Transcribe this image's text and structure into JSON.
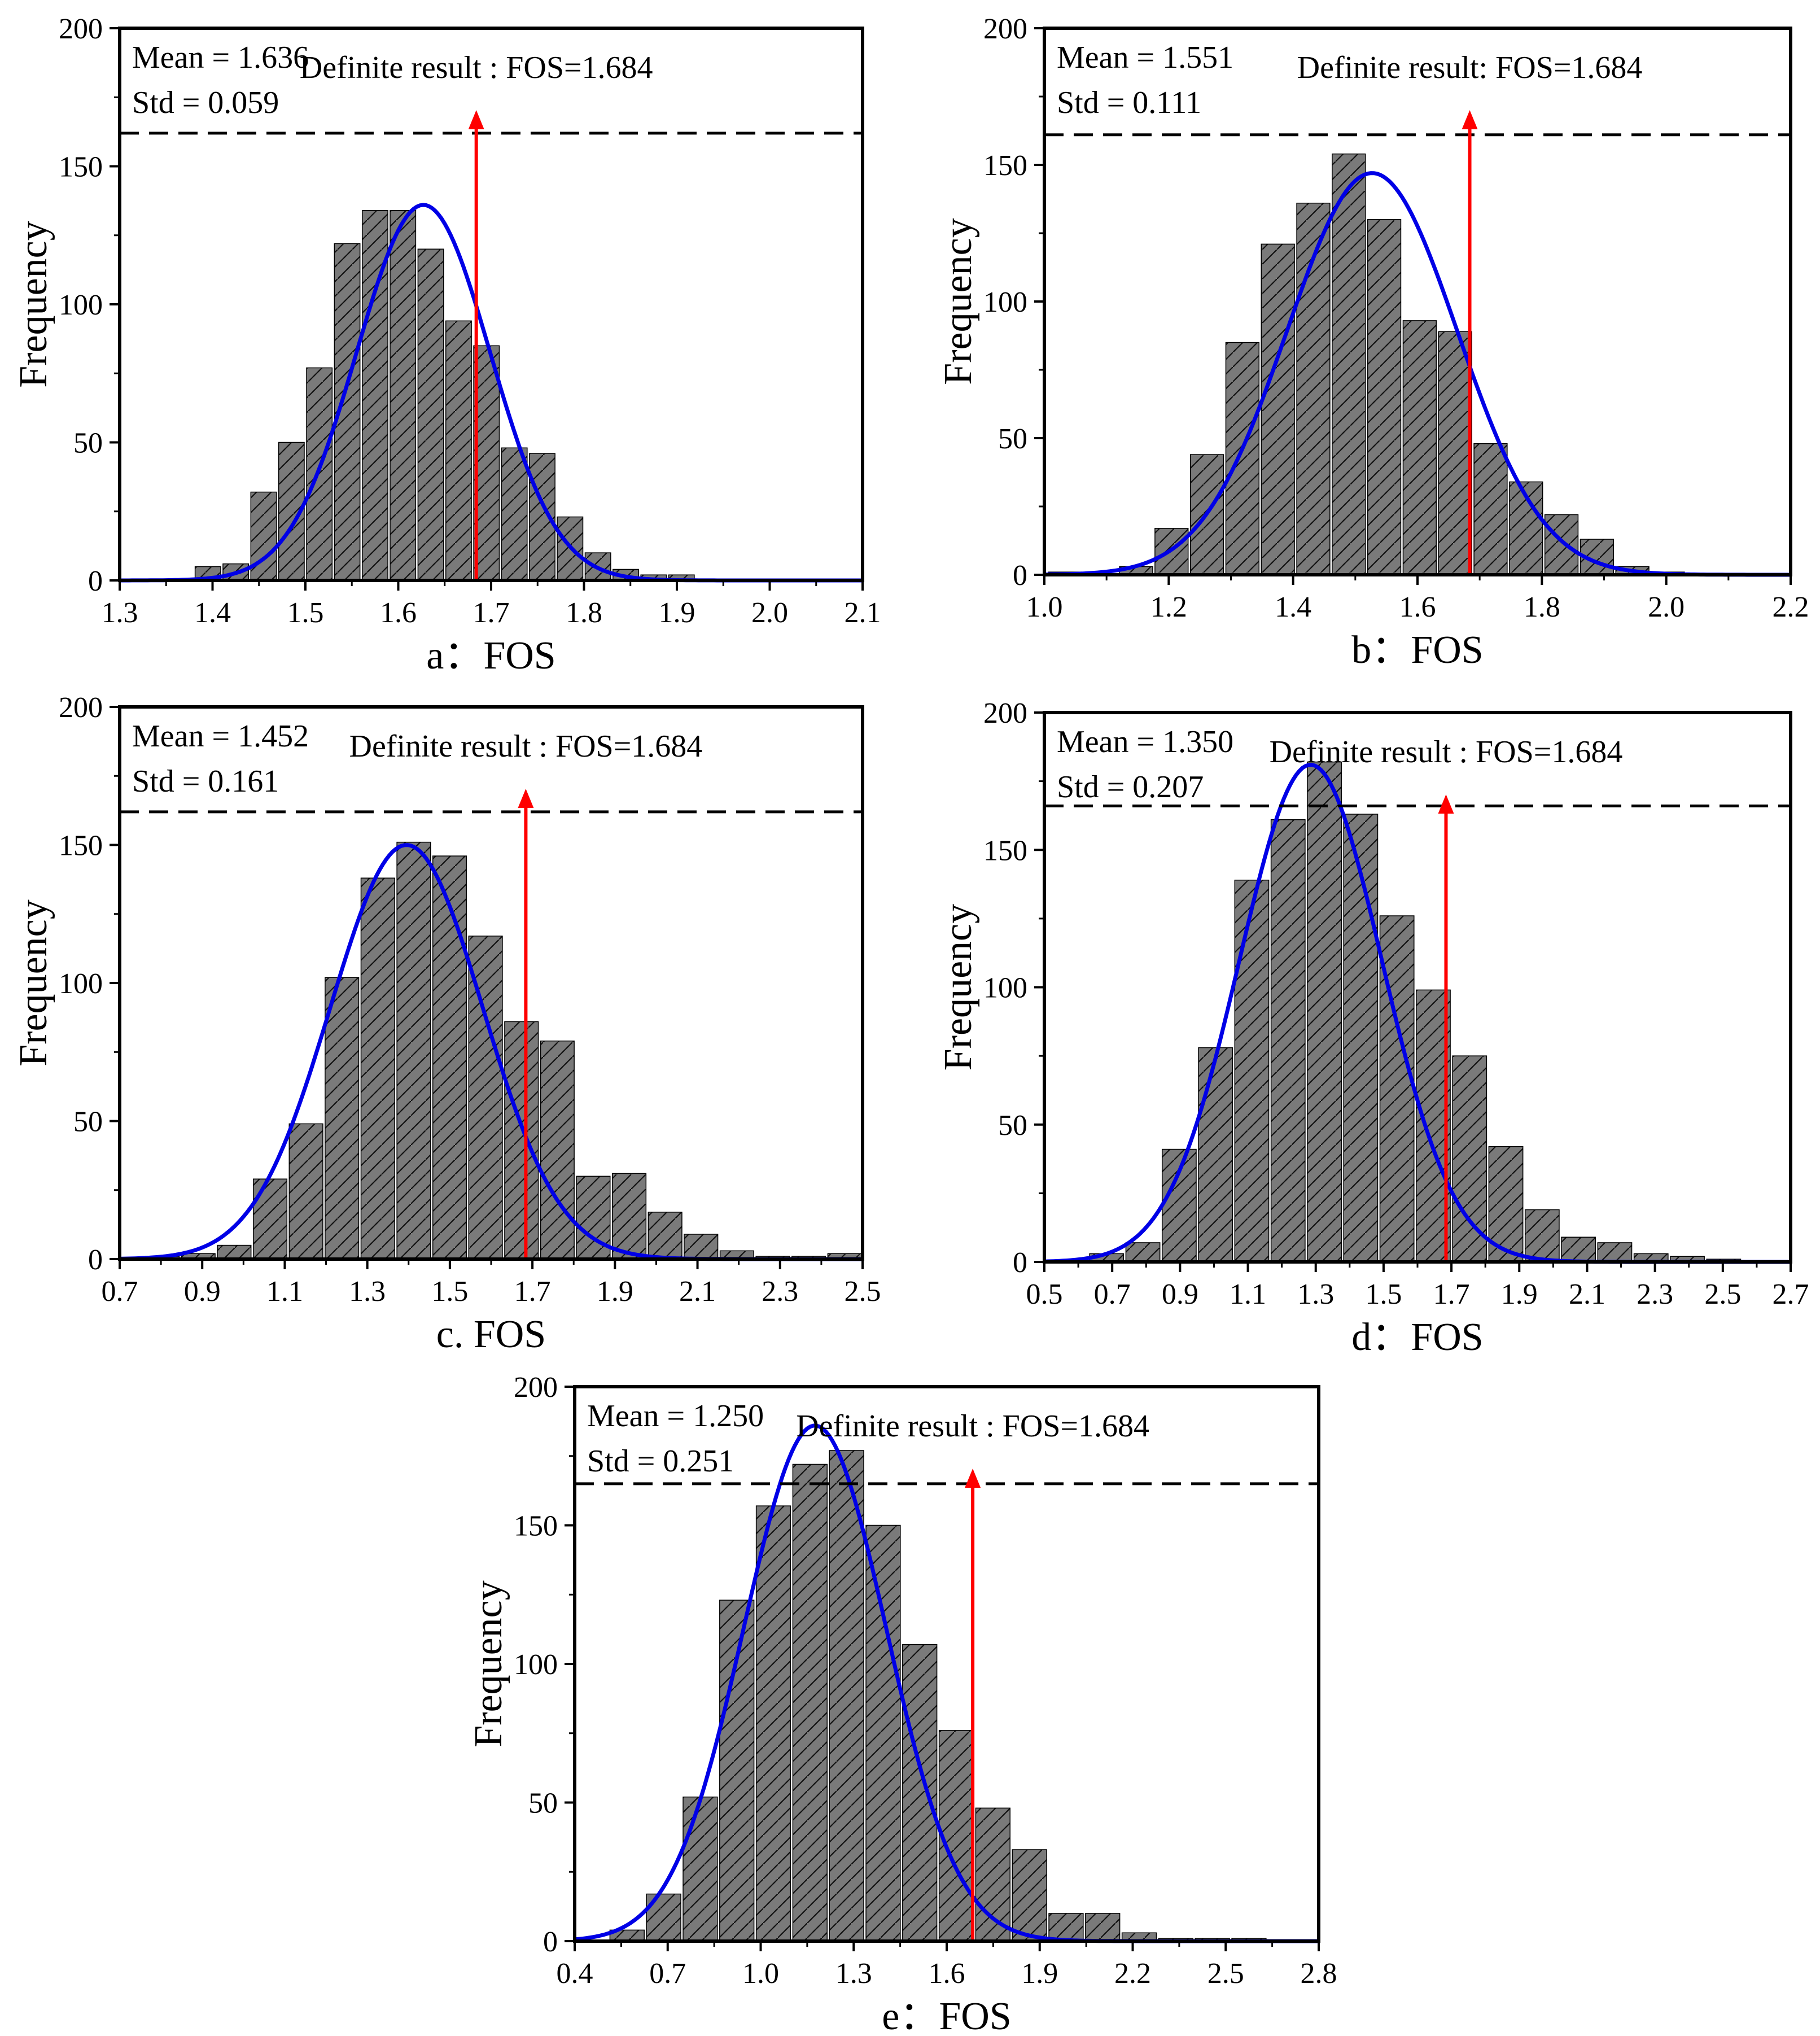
{
  "figure": {
    "caption_colors": {
      "bar": "#7a7a7a",
      "curve": "#0000e6",
      "arrow": "#ff0000",
      "frame": "#000000"
    }
  },
  "chart_data": [
    {
      "id": "a",
      "type": "bar",
      "xlabel": "a：FOS",
      "ylabel": "Frequency",
      "xlim": [
        1.3,
        2.1
      ],
      "ylim": [
        0,
        200
      ],
      "xticks": [
        "1.3",
        "1.4",
        "1.5",
        "1.6",
        "1.7",
        "1.8",
        "1.9",
        "2.0",
        "2.1"
      ],
      "yticks": [
        "0",
        "50",
        "100",
        "150",
        "200"
      ],
      "mean_label": "Mean = 1.636",
      "std_label": "Std = 0.059",
      "annotation": "Definite result : FOS=1.684",
      "definite_fos": 1.684,
      "threshold": 162,
      "bin_start": 1.38,
      "bin_width": 0.03,
      "values": [
        5,
        6,
        32,
        50,
        77,
        122,
        134,
        134,
        120,
        94,
        85,
        48,
        46,
        23,
        10,
        4,
        2,
        2
      ],
      "curve": {
        "mu": 1.627,
        "sigma": 0.072,
        "amp": 136
      }
    },
    {
      "id": "b",
      "type": "bar",
      "xlabel": "b：FOS",
      "ylabel": "Frequency",
      "xlim": [
        1.0,
        2.2
      ],
      "ylim": [
        0,
        200
      ],
      "xticks": [
        "1.0",
        "1.2",
        "1.4",
        "1.6",
        "1.8",
        "2.0",
        "2.2"
      ],
      "yticks": [
        "0",
        "50",
        "100",
        "150",
        "200"
      ],
      "mean_label": "Mean = 1.551",
      "std_label": "Std = 0.111",
      "annotation": "Definite result: FOS=1.684",
      "definite_fos": 1.684,
      "threshold": 161,
      "bin_start": 1.005,
      "bin_width": 0.057,
      "values": [
        1,
        0,
        3,
        17,
        44,
        85,
        121,
        136,
        154,
        130,
        93,
        89,
        48,
        34,
        22,
        13,
        3,
        1
      ],
      "curve": {
        "mu": 1.527,
        "sigma": 0.137,
        "amp": 147
      }
    },
    {
      "id": "c",
      "type": "bar",
      "xlabel": "c. FOS",
      "ylabel": "Frequency",
      "xlim": [
        0.7,
        2.5
      ],
      "ylim": [
        0,
        200
      ],
      "xticks": [
        "0.7",
        "0.9",
        "1.1",
        "1.3",
        "1.5",
        "1.7",
        "1.9",
        "2.1",
        "2.3",
        "2.5"
      ],
      "yticks": [
        "0",
        "50",
        "100",
        "150",
        "200"
      ],
      "mean_label": "Mean = 1.452",
      "std_label": "Std = 0.161",
      "annotation": "Definite result : FOS=1.684",
      "definite_fos": 1.684,
      "threshold": 162,
      "bin_start": 0.76,
      "bin_width": 0.087,
      "values": [
        1,
        2,
        5,
        29,
        49,
        102,
        138,
        151,
        146,
        117,
        86,
        79,
        30,
        31,
        17,
        9,
        3,
        1,
        1,
        2
      ],
      "curve": {
        "mu": 1.395,
        "sigma": 0.185,
        "amp": 150
      }
    },
    {
      "id": "d",
      "type": "bar",
      "xlabel": "d：FOS",
      "ylabel": "Frequency",
      "xlim": [
        0.5,
        2.7
      ],
      "ylim": [
        0,
        200
      ],
      "xticks": [
        "0.5",
        "0.7",
        "0.9",
        "1.1",
        "1.3",
        "1.5",
        "1.7",
        "1.9",
        "2.1",
        "2.3",
        "2.5",
        "2.7"
      ],
      "yticks": [
        "0",
        "50",
        "100",
        "150",
        "200"
      ],
      "mean_label": "Mean = 1.350",
      "std_label": "Std = 0.207",
      "annotation": "Definite result : FOS=1.684",
      "definite_fos": 1.684,
      "threshold": 166,
      "bin_start": 0.63,
      "bin_width": 0.107,
      "values": [
        3,
        7,
        41,
        78,
        139,
        161,
        182,
        163,
        126,
        99,
        75,
        42,
        19,
        9,
        7,
        3,
        2,
        1
      ],
      "curve": {
        "mu": 1.285,
        "sigma": 0.21,
        "amp": 181
      }
    },
    {
      "id": "e",
      "type": "bar",
      "xlabel": "e：FOS",
      "ylabel": "Frequency",
      "xlim": [
        0.4,
        2.8
      ],
      "ylim": [
        0,
        200
      ],
      "xticks": [
        "0.4",
        "0.7",
        "1.0",
        "1.3",
        "1.6",
        "1.9",
        "2.2",
        "2.5",
        "2.8"
      ],
      "yticks": [
        "0",
        "50",
        "100",
        "150",
        "200"
      ],
      "mean_label": "Mean = 1.250",
      "std_label": "Std = 0.251",
      "annotation": "Definite result : FOS=1.684",
      "definite_fos": 1.684,
      "threshold": 165,
      "bin_start": 0.51,
      "bin_width": 0.118,
      "values": [
        4,
        17,
        52,
        123,
        157,
        172,
        177,
        150,
        107,
        76,
        48,
        33,
        10,
        10,
        3,
        1,
        1,
        1
      ],
      "curve": {
        "mu": 1.175,
        "sigma": 0.23,
        "amp": 186
      }
    }
  ]
}
